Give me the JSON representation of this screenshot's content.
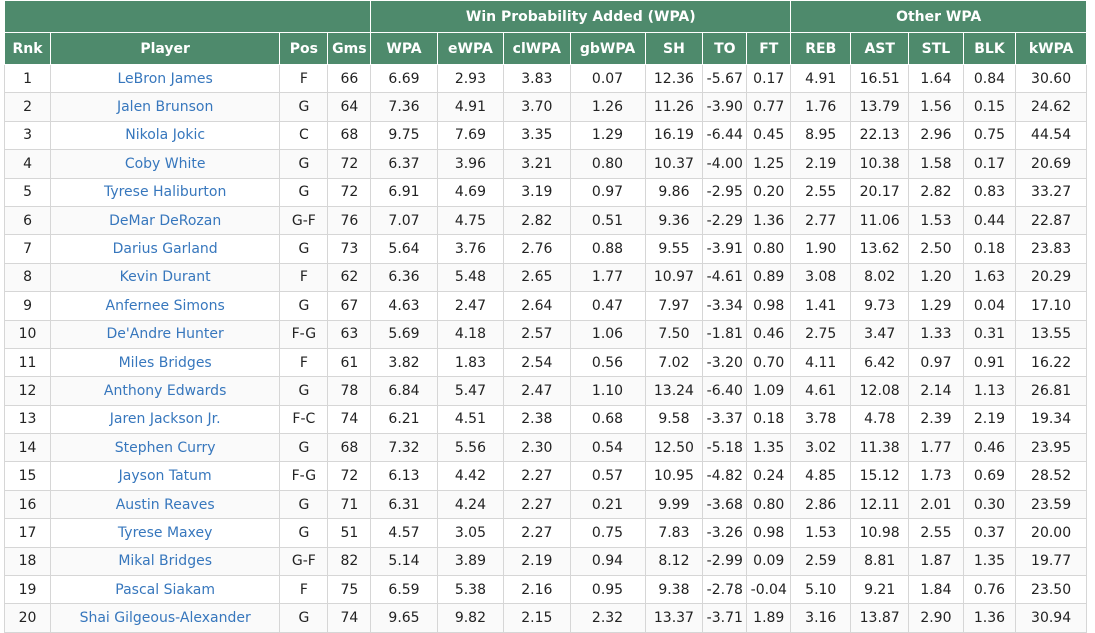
{
  "groups": {
    "wpa": "Win Probability Added (WPA)",
    "other": "Other WPA"
  },
  "columns": [
    "Rnk",
    "Player",
    "Pos",
    "Gms",
    "WPA",
    "eWPA",
    "clWPA",
    "gbWPA",
    "SH",
    "TO",
    "FT",
    "REB",
    "AST",
    "STL",
    "BLK",
    "kWPA"
  ],
  "rows": [
    [
      "1",
      "LeBron James",
      "F",
      "66",
      "6.69",
      "2.93",
      "3.83",
      "0.07",
      "12.36",
      "-5.67",
      "0.17",
      "4.91",
      "16.51",
      "1.64",
      "0.84",
      "30.60"
    ],
    [
      "2",
      "Jalen Brunson",
      "G",
      "64",
      "7.36",
      "4.91",
      "3.70",
      "1.26",
      "11.26",
      "-3.90",
      "0.77",
      "1.76",
      "13.79",
      "1.56",
      "0.15",
      "24.62"
    ],
    [
      "3",
      "Nikola Jokic",
      "C",
      "68",
      "9.75",
      "7.69",
      "3.35",
      "1.29",
      "16.19",
      "-6.44",
      "0.45",
      "8.95",
      "22.13",
      "2.96",
      "0.75",
      "44.54"
    ],
    [
      "4",
      "Coby White",
      "G",
      "72",
      "6.37",
      "3.96",
      "3.21",
      "0.80",
      "10.37",
      "-4.00",
      "1.25",
      "2.19",
      "10.38",
      "1.58",
      "0.17",
      "20.69"
    ],
    [
      "5",
      "Tyrese Haliburton",
      "G",
      "72",
      "6.91",
      "4.69",
      "3.19",
      "0.97",
      "9.86",
      "-2.95",
      "0.20",
      "2.55",
      "20.17",
      "2.82",
      "0.83",
      "33.27"
    ],
    [
      "6",
      "DeMar DeRozan",
      "G-F",
      "76",
      "7.07",
      "4.75",
      "2.82",
      "0.51",
      "9.36",
      "-2.29",
      "1.36",
      "2.77",
      "11.06",
      "1.53",
      "0.44",
      "22.87"
    ],
    [
      "7",
      "Darius Garland",
      "G",
      "73",
      "5.64",
      "3.76",
      "2.76",
      "0.88",
      "9.55",
      "-3.91",
      "0.80",
      "1.90",
      "13.62",
      "2.50",
      "0.18",
      "23.83"
    ],
    [
      "8",
      "Kevin Durant",
      "F",
      "62",
      "6.36",
      "5.48",
      "2.65",
      "1.77",
      "10.97",
      "-4.61",
      "0.89",
      "3.08",
      "8.02",
      "1.20",
      "1.63",
      "20.29"
    ],
    [
      "9",
      "Anfernee Simons",
      "G",
      "67",
      "4.63",
      "2.47",
      "2.64",
      "0.47",
      "7.97",
      "-3.34",
      "0.98",
      "1.41",
      "9.73",
      "1.29",
      "0.04",
      "17.10"
    ],
    [
      "10",
      "De'Andre Hunter",
      "F-G",
      "63",
      "5.69",
      "4.18",
      "2.57",
      "1.06",
      "7.50",
      "-1.81",
      "0.46",
      "2.75",
      "3.47",
      "1.33",
      "0.31",
      "13.55"
    ],
    [
      "11",
      "Miles Bridges",
      "F",
      "61",
      "3.82",
      "1.83",
      "2.54",
      "0.56",
      "7.02",
      "-3.20",
      "0.70",
      "4.11",
      "6.42",
      "0.97",
      "0.91",
      "16.22"
    ],
    [
      "12",
      "Anthony Edwards",
      "G",
      "78",
      "6.84",
      "5.47",
      "2.47",
      "1.10",
      "13.24",
      "-6.40",
      "1.09",
      "4.61",
      "12.08",
      "2.14",
      "1.13",
      "26.81"
    ],
    [
      "13",
      "Jaren Jackson Jr.",
      "F-C",
      "74",
      "6.21",
      "4.51",
      "2.38",
      "0.68",
      "9.58",
      "-3.37",
      "0.18",
      "3.78",
      "4.78",
      "2.39",
      "2.19",
      "19.34"
    ],
    [
      "14",
      "Stephen Curry",
      "G",
      "68",
      "7.32",
      "5.56",
      "2.30",
      "0.54",
      "12.50",
      "-5.18",
      "1.35",
      "3.02",
      "11.38",
      "1.77",
      "0.46",
      "23.95"
    ],
    [
      "15",
      "Jayson Tatum",
      "F-G",
      "72",
      "6.13",
      "4.42",
      "2.27",
      "0.57",
      "10.95",
      "-4.82",
      "0.24",
      "4.85",
      "15.12",
      "1.73",
      "0.69",
      "28.52"
    ],
    [
      "16",
      "Austin Reaves",
      "G",
      "71",
      "6.31",
      "4.24",
      "2.27",
      "0.21",
      "9.99",
      "-3.68",
      "0.80",
      "2.86",
      "12.11",
      "2.01",
      "0.30",
      "23.59"
    ],
    [
      "17",
      "Tyrese Maxey",
      "G",
      "51",
      "4.57",
      "3.05",
      "2.27",
      "0.75",
      "7.83",
      "-3.26",
      "0.98",
      "1.53",
      "10.98",
      "2.55",
      "0.37",
      "20.00"
    ],
    [
      "18",
      "Mikal Bridges",
      "G-F",
      "82",
      "5.14",
      "3.89",
      "2.19",
      "0.94",
      "8.12",
      "-2.99",
      "0.09",
      "2.59",
      "8.81",
      "1.87",
      "1.35",
      "19.77"
    ],
    [
      "19",
      "Pascal Siakam",
      "F",
      "75",
      "6.59",
      "5.38",
      "2.16",
      "0.95",
      "9.38",
      "-2.78",
      "-0.04",
      "5.10",
      "9.21",
      "1.84",
      "0.76",
      "23.50"
    ],
    [
      "20",
      "Shai Gilgeous-Alexander",
      "G",
      "74",
      "9.65",
      "9.82",
      "2.15",
      "2.32",
      "13.37",
      "-3.71",
      "1.89",
      "3.16",
      "13.87",
      "2.90",
      "1.36",
      "30.94"
    ]
  ],
  "colors": {
    "header_bg": "#4e8a6c",
    "header_text": "#ffffff",
    "player_link": "#3777bd"
  }
}
